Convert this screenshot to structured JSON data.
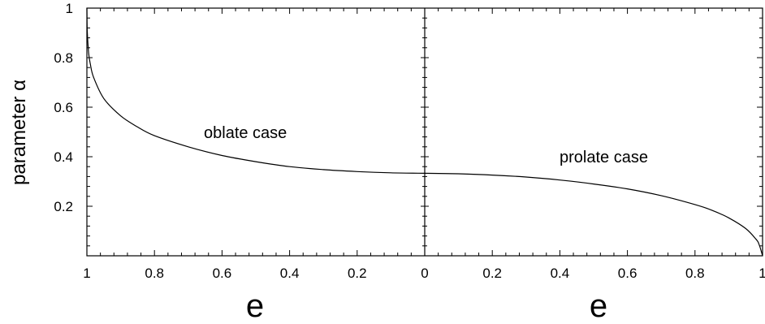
{
  "chart_data": {
    "type": "line",
    "ylabel": "parameter α",
    "xlabel_left": "e",
    "xlabel_right": "e",
    "ylim": [
      0,
      1
    ],
    "y_ticks": [
      0.2,
      0.4,
      0.6,
      0.8,
      1
    ],
    "y_tick_labels": [
      "0.2",
      "0.4",
      "0.6",
      "0.8",
      "1"
    ],
    "x_tick_labels": [
      "1",
      "0.8",
      "0.6",
      "0.4",
      "0.2",
      "0",
      "0.2",
      "0.4",
      "0.6",
      "0.8",
      "1"
    ],
    "grid": false,
    "annotations": [
      {
        "text": "oblate case",
        "panel": "oblate"
      },
      {
        "text": "prolate case",
        "panel": "prolate"
      }
    ],
    "series": [
      {
        "panel": "oblate",
        "x_direction": "decreasing",
        "x": [
          1.0,
          0.999,
          0.995,
          0.99,
          0.98,
          0.95,
          0.9,
          0.85,
          0.8,
          0.7,
          0.6,
          0.5,
          0.4,
          0.3,
          0.2,
          0.1,
          0.0
        ],
        "y": [
          1.0,
          0.91,
          0.82,
          0.775,
          0.72,
          0.635,
          0.565,
          0.52,
          0.485,
          0.44,
          0.405,
          0.38,
          0.36,
          0.348,
          0.34,
          0.335,
          0.333
        ]
      },
      {
        "panel": "prolate",
        "x_direction": "increasing",
        "x": [
          0.0,
          0.1,
          0.2,
          0.3,
          0.4,
          0.5,
          0.6,
          0.7,
          0.8,
          0.85,
          0.9,
          0.95,
          0.98,
          0.99,
          1.0
        ],
        "y": [
          0.333,
          0.331,
          0.326,
          0.318,
          0.306,
          0.29,
          0.27,
          0.243,
          0.207,
          0.184,
          0.153,
          0.11,
          0.068,
          0.045,
          0.0
        ]
      }
    ]
  }
}
